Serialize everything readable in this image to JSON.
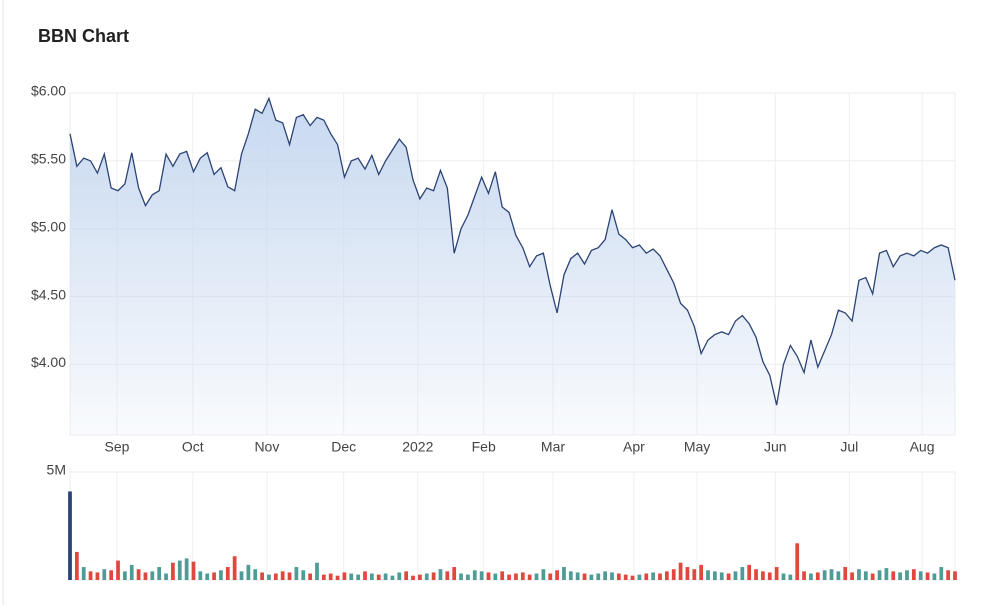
{
  "chart_data": [
    {
      "type": "area",
      "title": "BBN Chart",
      "color": "#2c4375",
      "fill": "#c4d6ef",
      "grid": true,
      "xlim": [
        0,
        129
      ],
      "xticks": [
        {
          "value": 6.85,
          "label": "Sep"
        },
        {
          "value": 17.9,
          "label": "Oct"
        },
        {
          "value": 28.7,
          "label": "Nov"
        },
        {
          "value": 39.9,
          "label": "Dec"
        },
        {
          "value": 50.7,
          "label": "2022"
        },
        {
          "value": 60.3,
          "label": "Feb"
        },
        {
          "value": 70.4,
          "label": "Mar"
        },
        {
          "value": 82.2,
          "label": "Apr"
        },
        {
          "value": 91.4,
          "label": "May"
        },
        {
          "value": 102.8,
          "label": "Jun"
        },
        {
          "value": 113.6,
          "label": "Jul"
        },
        {
          "value": 124.2,
          "label": "Aug"
        }
      ],
      "ylim": [
        3.48,
        6.0
      ],
      "yticks": [
        {
          "value": 6.0,
          "label": "$6.00"
        },
        {
          "value": 5.5,
          "label": "$5.50"
        },
        {
          "value": 5.0,
          "label": "$5.00"
        },
        {
          "value": 4.5,
          "label": "$4.50"
        },
        {
          "value": 4.0,
          "label": "$4.00"
        }
      ],
      "values": [
        5.7,
        5.46,
        5.52,
        5.5,
        5.41,
        5.55,
        5.3,
        5.28,
        5.33,
        5.56,
        5.3,
        5.17,
        5.25,
        5.28,
        5.55,
        5.46,
        5.55,
        5.57,
        5.42,
        5.52,
        5.56,
        5.4,
        5.45,
        5.31,
        5.28,
        5.55,
        5.7,
        5.88,
        5.85,
        5.96,
        5.8,
        5.78,
        5.62,
        5.82,
        5.84,
        5.76,
        5.82,
        5.8,
        5.7,
        5.62,
        5.38,
        5.5,
        5.52,
        5.44,
        5.54,
        5.4,
        5.5,
        5.58,
        5.66,
        5.6,
        5.36,
        5.22,
        5.3,
        5.28,
        5.43,
        5.3,
        4.82,
        5.0,
        5.1,
        5.24,
        5.38,
        5.26,
        5.42,
        5.16,
        5.12,
        4.95,
        4.86,
        4.72,
        4.8,
        4.82,
        4.58,
        4.38,
        4.66,
        4.78,
        4.82,
        4.74,
        4.84,
        4.86,
        4.92,
        5.14,
        4.96,
        4.92,
        4.86,
        4.88,
        4.82,
        4.85,
        4.8,
        4.7,
        4.6,
        4.45,
        4.4,
        4.28,
        4.08,
        4.18,
        4.22,
        4.24,
        4.22,
        4.32,
        4.36,
        4.3,
        4.2,
        4.02,
        3.92,
        3.7,
        4.0,
        4.14,
        4.06,
        3.94,
        4.18,
        3.98,
        4.1,
        4.22,
        4.4,
        4.38,
        4.32,
        4.62,
        4.64,
        4.52,
        4.82,
        4.84,
        4.72,
        4.8,
        4.82,
        4.8,
        4.84,
        4.82,
        4.86,
        4.88,
        4.86,
        4.62
      ]
    },
    {
      "type": "bar",
      "up_color": "#4f9c97",
      "down_color": "#e0483f",
      "first_color": "#2c4375",
      "xlim": [
        0,
        129
      ],
      "ylim": [
        0,
        5000000
      ],
      "yticks": [
        {
          "value": 5000000,
          "label": "5M"
        }
      ],
      "values": [
        4100000,
        1300000,
        600000,
        400000,
        350000,
        500000,
        450000,
        900000,
        400000,
        700000,
        500000,
        350000,
        400000,
        600000,
        300000,
        800000,
        900000,
        1000000,
        850000,
        400000,
        300000,
        350000,
        450000,
        600000,
        1100000,
        400000,
        700000,
        500000,
        350000,
        250000,
        300000,
        400000,
        350000,
        600000,
        450000,
        300000,
        800000,
        250000,
        300000,
        200000,
        350000,
        300000,
        250000,
        400000,
        300000,
        250000,
        300000,
        200000,
        350000,
        400000,
        200000,
        250000,
        300000,
        350000,
        500000,
        400000,
        600000,
        300000,
        250000,
        450000,
        400000,
        350000,
        300000,
        400000,
        250000,
        300000,
        350000,
        250000,
        300000,
        500000,
        300000,
        450000,
        600000,
        400000,
        350000,
        300000,
        250000,
        300000,
        400000,
        350000,
        300000,
        250000,
        200000,
        250000,
        300000,
        350000,
        300000,
        400000,
        500000,
        800000,
        600000,
        500000,
        700000,
        450000,
        400000,
        350000,
        300000,
        400000,
        600000,
        700000,
        500000,
        400000,
        350000,
        600000,
        300000,
        250000,
        1700000,
        400000,
        300000,
        350000,
        450000,
        500000,
        400000,
        600000,
        350000,
        500000,
        400000,
        300000,
        450000,
        550000,
        400000,
        350000,
        450000,
        500000,
        400000,
        350000,
        300000,
        600000,
        450000,
        400000
      ]
    }
  ]
}
